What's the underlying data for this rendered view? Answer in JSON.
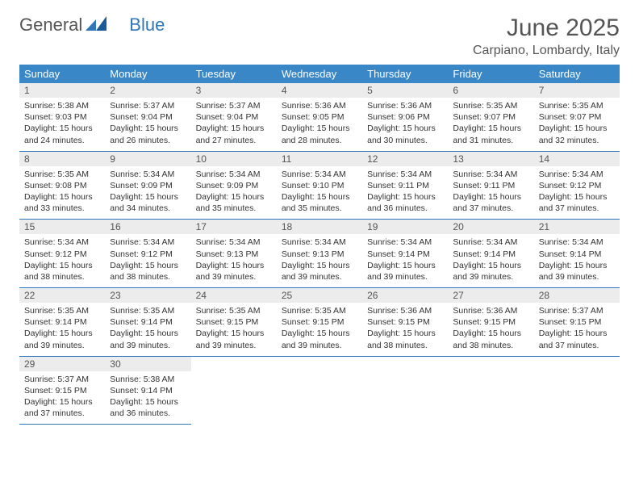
{
  "logo": {
    "text1": "General",
    "text2": "Blue"
  },
  "title": {
    "month": "June 2025",
    "location": "Carpiano, Lombardy, Italy"
  },
  "colors": {
    "header_bg": "#3a87c8",
    "header_text": "#ffffff",
    "daynum_bg": "#ececec",
    "border": "#2f76bb",
    "body_text": "#333333",
    "title_text": "#555555"
  },
  "weekdays": [
    "Sunday",
    "Monday",
    "Tuesday",
    "Wednesday",
    "Thursday",
    "Friday",
    "Saturday"
  ],
  "weeks": [
    [
      {
        "n": "1",
        "sunrise": "5:38 AM",
        "sunset": "9:03 PM",
        "daylight": "15 hours and 24 minutes."
      },
      {
        "n": "2",
        "sunrise": "5:37 AM",
        "sunset": "9:04 PM",
        "daylight": "15 hours and 26 minutes."
      },
      {
        "n": "3",
        "sunrise": "5:37 AM",
        "sunset": "9:04 PM",
        "daylight": "15 hours and 27 minutes."
      },
      {
        "n": "4",
        "sunrise": "5:36 AM",
        "sunset": "9:05 PM",
        "daylight": "15 hours and 28 minutes."
      },
      {
        "n": "5",
        "sunrise": "5:36 AM",
        "sunset": "9:06 PM",
        "daylight": "15 hours and 30 minutes."
      },
      {
        "n": "6",
        "sunrise": "5:35 AM",
        "sunset": "9:07 PM",
        "daylight": "15 hours and 31 minutes."
      },
      {
        "n": "7",
        "sunrise": "5:35 AM",
        "sunset": "9:07 PM",
        "daylight": "15 hours and 32 minutes."
      }
    ],
    [
      {
        "n": "8",
        "sunrise": "5:35 AM",
        "sunset": "9:08 PM",
        "daylight": "15 hours and 33 minutes."
      },
      {
        "n": "9",
        "sunrise": "5:34 AM",
        "sunset": "9:09 PM",
        "daylight": "15 hours and 34 minutes."
      },
      {
        "n": "10",
        "sunrise": "5:34 AM",
        "sunset": "9:09 PM",
        "daylight": "15 hours and 35 minutes."
      },
      {
        "n": "11",
        "sunrise": "5:34 AM",
        "sunset": "9:10 PM",
        "daylight": "15 hours and 35 minutes."
      },
      {
        "n": "12",
        "sunrise": "5:34 AM",
        "sunset": "9:11 PM",
        "daylight": "15 hours and 36 minutes."
      },
      {
        "n": "13",
        "sunrise": "5:34 AM",
        "sunset": "9:11 PM",
        "daylight": "15 hours and 37 minutes."
      },
      {
        "n": "14",
        "sunrise": "5:34 AM",
        "sunset": "9:12 PM",
        "daylight": "15 hours and 37 minutes."
      }
    ],
    [
      {
        "n": "15",
        "sunrise": "5:34 AM",
        "sunset": "9:12 PM",
        "daylight": "15 hours and 38 minutes."
      },
      {
        "n": "16",
        "sunrise": "5:34 AM",
        "sunset": "9:12 PM",
        "daylight": "15 hours and 38 minutes."
      },
      {
        "n": "17",
        "sunrise": "5:34 AM",
        "sunset": "9:13 PM",
        "daylight": "15 hours and 39 minutes."
      },
      {
        "n": "18",
        "sunrise": "5:34 AM",
        "sunset": "9:13 PM",
        "daylight": "15 hours and 39 minutes."
      },
      {
        "n": "19",
        "sunrise": "5:34 AM",
        "sunset": "9:14 PM",
        "daylight": "15 hours and 39 minutes."
      },
      {
        "n": "20",
        "sunrise": "5:34 AM",
        "sunset": "9:14 PM",
        "daylight": "15 hours and 39 minutes."
      },
      {
        "n": "21",
        "sunrise": "5:34 AM",
        "sunset": "9:14 PM",
        "daylight": "15 hours and 39 minutes."
      }
    ],
    [
      {
        "n": "22",
        "sunrise": "5:35 AM",
        "sunset": "9:14 PM",
        "daylight": "15 hours and 39 minutes."
      },
      {
        "n": "23",
        "sunrise": "5:35 AM",
        "sunset": "9:14 PM",
        "daylight": "15 hours and 39 minutes."
      },
      {
        "n": "24",
        "sunrise": "5:35 AM",
        "sunset": "9:15 PM",
        "daylight": "15 hours and 39 minutes."
      },
      {
        "n": "25",
        "sunrise": "5:35 AM",
        "sunset": "9:15 PM",
        "daylight": "15 hours and 39 minutes."
      },
      {
        "n": "26",
        "sunrise": "5:36 AM",
        "sunset": "9:15 PM",
        "daylight": "15 hours and 38 minutes."
      },
      {
        "n": "27",
        "sunrise": "5:36 AM",
        "sunset": "9:15 PM",
        "daylight": "15 hours and 38 minutes."
      },
      {
        "n": "28",
        "sunrise": "5:37 AM",
        "sunset": "9:15 PM",
        "daylight": "15 hours and 37 minutes."
      }
    ],
    [
      {
        "n": "29",
        "sunrise": "5:37 AM",
        "sunset": "9:15 PM",
        "daylight": "15 hours and 37 minutes."
      },
      {
        "n": "30",
        "sunrise": "5:38 AM",
        "sunset": "9:14 PM",
        "daylight": "15 hours and 36 minutes."
      },
      null,
      null,
      null,
      null,
      null
    ]
  ],
  "labels": {
    "sunrise": "Sunrise:",
    "sunset": "Sunset:",
    "daylight": "Daylight:"
  }
}
